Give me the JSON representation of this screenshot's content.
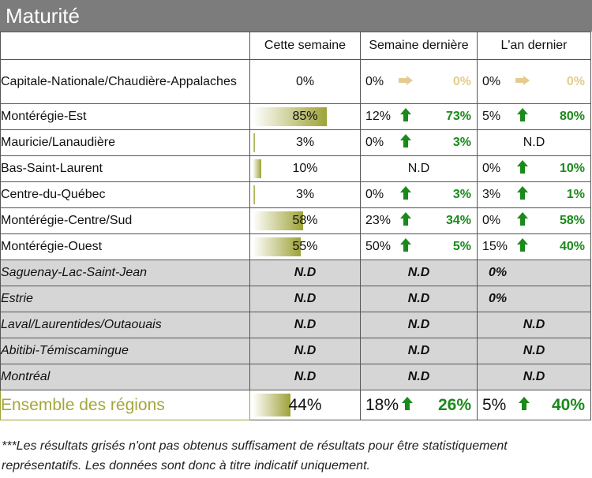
{
  "title": "Maturité",
  "headers": {
    "region": "",
    "this_week": "Cette semaine",
    "last_week": "Semaine dernière",
    "last_year": "L'an dernier"
  },
  "rows": [
    {
      "region": "Capitale-Nationale/Chaudière-Appalaches",
      "value": "0%",
      "level": 0,
      "lw_val": "0%",
      "lw_trend": "right",
      "lw_diff": "0%",
      "ly_val": "0%",
      "ly_trend": "right",
      "ly_diff": "0%"
    },
    {
      "region": "Montérégie-Est",
      "value": "85%",
      "level": 0.85,
      "lw_val": "12%",
      "lw_trend": "up",
      "lw_diff": "73%",
      "ly_val": "5%",
      "ly_trend": "up",
      "ly_diff": "80%"
    },
    {
      "region": "Mauricie/Lanaudière",
      "value": "3%",
      "level": 0.03,
      "lw_val": "0%",
      "lw_trend": "up",
      "lw_diff": "3%",
      "ly_nd": "N.D"
    },
    {
      "region": "Bas-Saint-Laurent",
      "value": "10%",
      "level": 0.1,
      "lw_nd": "N.D",
      "ly_val": "0%",
      "ly_trend": "up",
      "ly_diff": "10%"
    },
    {
      "region": "Centre-du-Québec",
      "value": "3%",
      "level": 0.03,
      "lw_val": "0%",
      "lw_trend": "up",
      "lw_diff": "3%",
      "ly_val": "3%",
      "ly_trend": "up",
      "ly_diff": "1%"
    },
    {
      "region": "Montérégie-Centre/Sud",
      "value": "58%",
      "level": 0.58,
      "lw_val": "23%",
      "lw_trend": "up",
      "lw_diff": "34%",
      "ly_val": "0%",
      "ly_trend": "up",
      "ly_diff": "58%"
    },
    {
      "region": "Montérégie-Ouest",
      "value": "55%",
      "level": 0.55,
      "lw_val": "50%",
      "lw_trend": "up",
      "lw_diff": "5%",
      "ly_val": "15%",
      "ly_trend": "up",
      "ly_diff": "40%"
    }
  ],
  "grey_rows": [
    {
      "region": "Saguenay-Lac-Saint-Jean",
      "value": "N.D",
      "last_week": "N.D",
      "last_year": "0%"
    },
    {
      "region": "Estrie",
      "value": "N.D",
      "last_week": "N.D",
      "last_year": "0%"
    },
    {
      "region": "Laval/Laurentides/Outaouais",
      "value": "N.D",
      "last_week": "N.D",
      "last_year": "N.D"
    },
    {
      "region": "Abitibi-Témiscamingue",
      "value": "N.D",
      "last_week": "N.D",
      "last_year": "N.D"
    },
    {
      "region": "Montréal",
      "value": "N.D",
      "last_week": "N.D",
      "last_year": "N.D"
    }
  ],
  "total": {
    "region": "Ensemble des régions",
    "value": "44%",
    "level": 0.44,
    "lw_val": "18%",
    "lw_trend": "up",
    "lw_diff": "26%",
    "ly_val": "5%",
    "ly_trend": "up",
    "ly_diff": "40%"
  },
  "footnote": "***Les résultats grisés n'ont pas obtenus suffisament de résultats pour être statistiquement représentatifs. Les données sont donc à titre indicatif uniquement.",
  "colors": {
    "title_bg": "#7c7c7c",
    "bar": "#9ea238",
    "up_arrow": "#1a8a1a",
    "neutral_arrow": "#e3cc8e",
    "grey_row": "#d6d6d6",
    "total_label": "#a3a73a"
  }
}
